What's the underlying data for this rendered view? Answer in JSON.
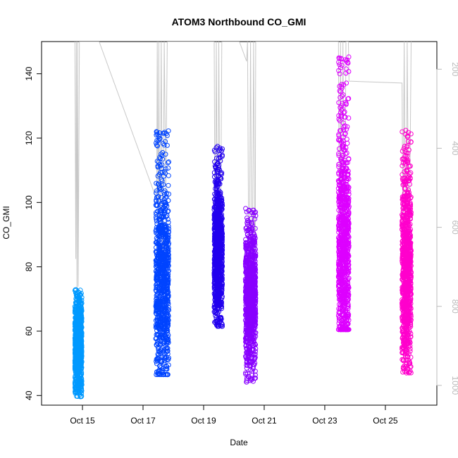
{
  "chart_data": {
    "type": "scatter",
    "title": "ATOM3 Northbound CO_GMI",
    "xlabel": "Date",
    "ylabel": "CO_GMI",
    "x_ticks": [
      {
        "day": 15,
        "label": "Oct 15"
      },
      {
        "day": 17,
        "label": "Oct 17"
      },
      {
        "day": 19,
        "label": "Oct 19"
      },
      {
        "day": 21,
        "label": "Oct 21"
      },
      {
        "day": 23,
        "label": "Oct 23"
      },
      {
        "day": 25,
        "label": "Oct 25"
      }
    ],
    "xlim_days": [
      13.65,
      26.7
    ],
    "ylim": [
      37,
      150
    ],
    "y_ticks": [
      40,
      60,
      80,
      100,
      120,
      140
    ],
    "y2_ticks": [
      200,
      400,
      600,
      800,
      1000
    ],
    "y2_axis": "pressure (inverted, gray)",
    "ylim2_inverted": [
      1050,
      130
    ],
    "grid": false,
    "legend": "none",
    "series_colors": [
      "#0099ff",
      "#0044ff",
      "#2200ee",
      "#8800ff",
      "#dd00ff",
      "#ff00cc"
    ],
    "flights": [
      {
        "day_start": 14.75,
        "day_end": 14.98,
        "values_min": 39.5,
        "values_max": 73,
        "center": 56,
        "color": "#0099ff"
      },
      {
        "day_start": 17.42,
        "day_end": 17.85,
        "values_min": 46.5,
        "values_max": 122.5,
        "center": 75,
        "color": "#0044ff"
      },
      {
        "day_start": 19.35,
        "day_end": 19.62,
        "values_min": 61.5,
        "values_max": 117.5,
        "center": 85,
        "color": "#2200ee"
      },
      {
        "day_start": 20.38,
        "day_end": 20.72,
        "values_min": 44,
        "values_max": 98.5,
        "center": 70,
        "color": "#8800ff"
      },
      {
        "day_start": 23.45,
        "day_end": 23.8,
        "values_min": 60.5,
        "values_max": 145.5,
        "center": 85,
        "color": "#dd00ff"
      },
      {
        "day_start": 25.55,
        "day_end": 25.85,
        "values_min": 47,
        "values_max": 122.5,
        "center": 78,
        "color": "#ff00cc"
      }
    ],
    "pressure_track": [
      [
        14.75,
        130
      ],
      [
        14.78,
        680
      ],
      [
        14.8,
        130
      ],
      [
        14.82,
        780
      ],
      [
        14.84,
        130
      ],
      [
        14.86,
        750
      ],
      [
        14.9,
        130
      ],
      [
        14.95,
        130
      ],
      [
        15.55,
        130
      ],
      [
        17.45,
        530
      ],
      [
        17.47,
        130
      ],
      [
        17.5,
        720
      ],
      [
        17.52,
        130
      ],
      [
        17.55,
        800
      ],
      [
        17.6,
        130
      ],
      [
        17.65,
        760
      ],
      [
        17.7,
        130
      ],
      [
        17.75,
        520
      ],
      [
        17.8,
        130
      ],
      [
        19.35,
        130
      ],
      [
        19.38,
        680
      ],
      [
        19.42,
        130
      ],
      [
        19.46,
        820
      ],
      [
        19.5,
        130
      ],
      [
        19.55,
        760
      ],
      [
        19.6,
        130
      ],
      [
        20.18,
        130
      ],
      [
        20.42,
        180
      ],
      [
        20.45,
        130
      ],
      [
        20.5,
        840
      ],
      [
        20.55,
        130
      ],
      [
        20.6,
        860
      ],
      [
        20.65,
        130
      ],
      [
        20.7,
        780
      ],
      [
        20.72,
        130
      ],
      [
        23.45,
        130
      ],
      [
        23.48,
        700
      ],
      [
        23.52,
        130
      ],
      [
        23.56,
        800
      ],
      [
        23.6,
        130
      ],
      [
        23.65,
        720
      ],
      [
        23.7,
        130
      ],
      [
        23.78,
        130
      ],
      [
        23.8,
        230
      ],
      [
        25.55,
        235
      ],
      [
        25.58,
        660
      ],
      [
        25.62,
        130
      ],
      [
        25.68,
        820
      ],
      [
        25.72,
        130
      ],
      [
        25.78,
        760
      ],
      [
        25.85,
        130
      ]
    ]
  }
}
